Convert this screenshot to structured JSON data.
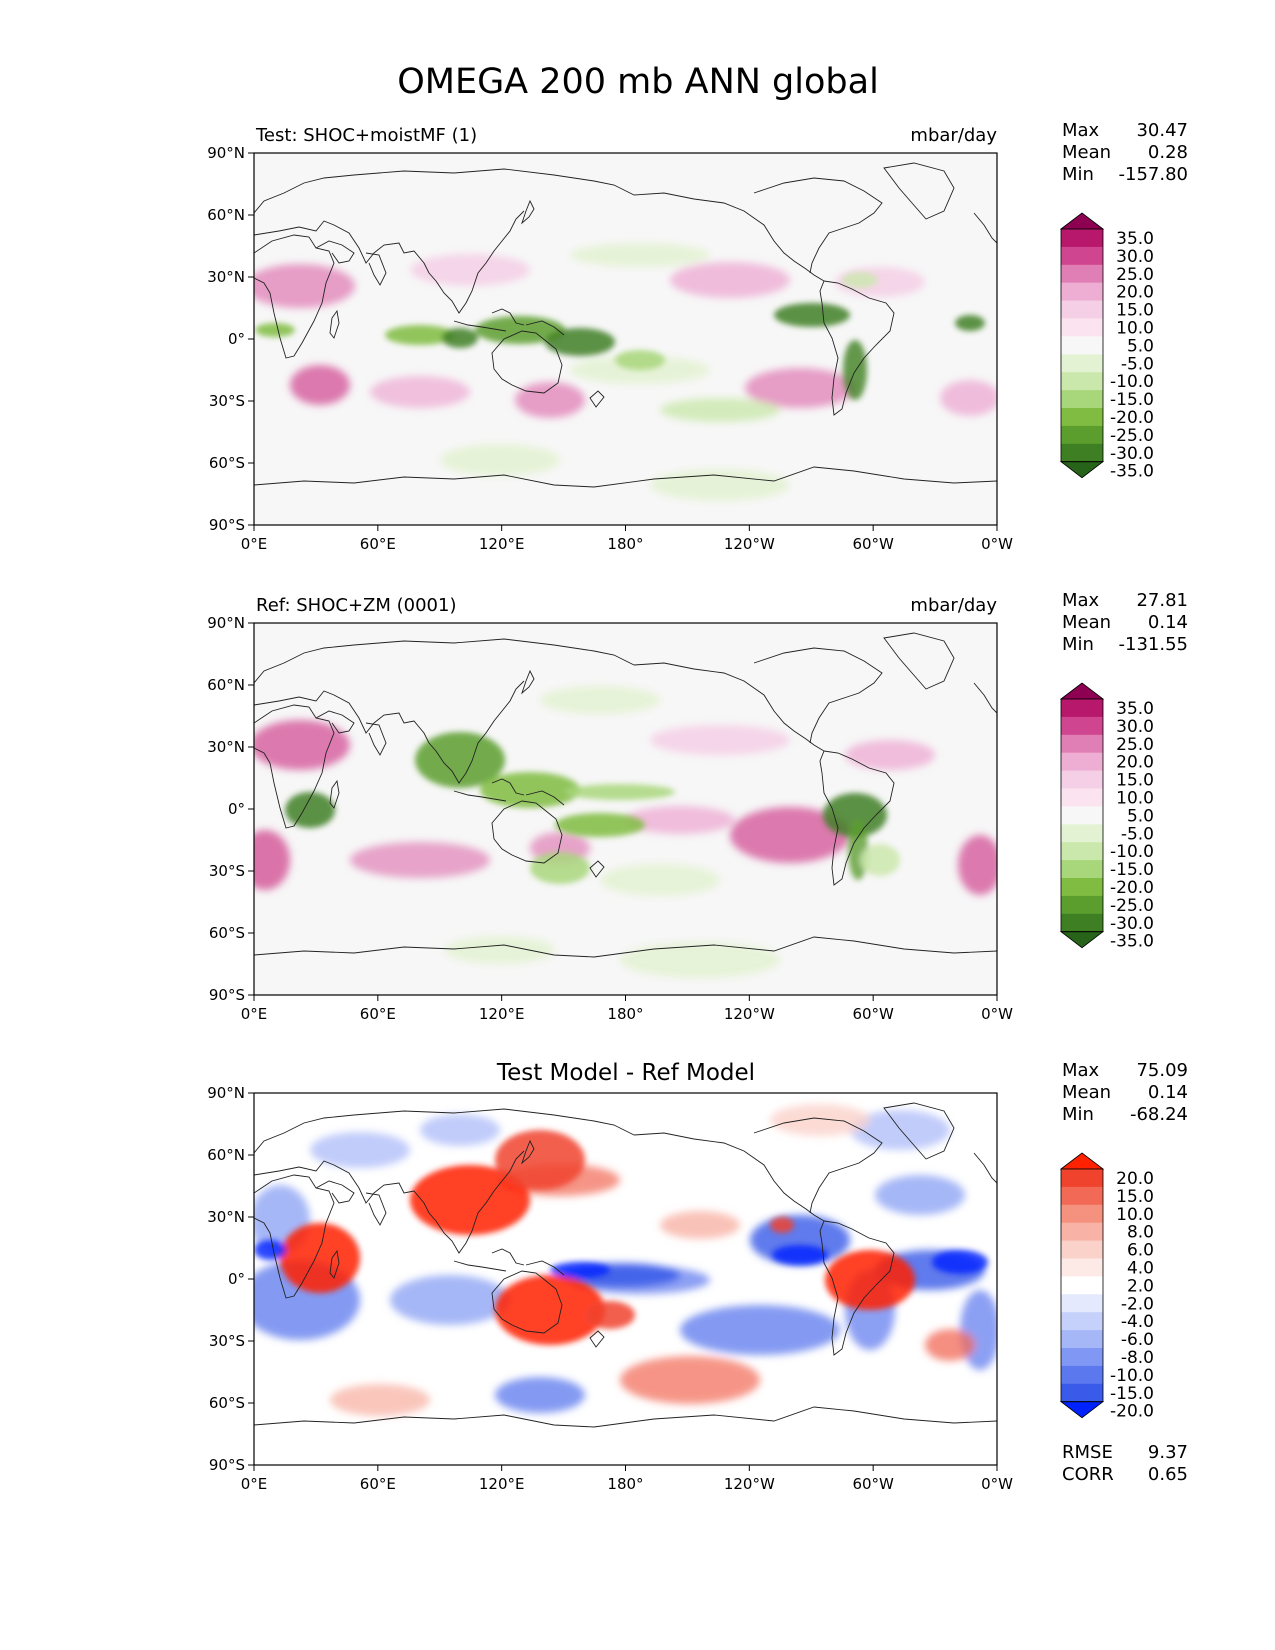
{
  "figure": {
    "title": "OMEGA 200 mb ANN global"
  },
  "chart_data": [
    {
      "type": "contour-map",
      "title": "Test: SHOC+moistMF (1)",
      "units": "mbar/day",
      "x_ticks": [
        "0°E",
        "60°E",
        "120°E",
        "180°",
        "120°W",
        "60°W",
        "0°W"
      ],
      "y_ticks": [
        "90°N",
        "60°N",
        "30°N",
        "0°",
        "30°S",
        "60°S",
        "90°S"
      ],
      "xlim": [
        0,
        360
      ],
      "ylim": [
        -90,
        90
      ],
      "stats": [
        {
          "label": "Max",
          "value": "30.47"
        },
        {
          "label": "Mean",
          "value": "0.28"
        },
        {
          "label": "Min",
          "value": "-157.80"
        }
      ],
      "colorbar": {
        "levels": [
          "35.0",
          "30.0",
          "25.0",
          "20.0",
          "15.0",
          "10.0",
          "5.0",
          "-5.0",
          "-10.0",
          "-15.0",
          "-20.0",
          "-25.0",
          "-30.0",
          "-35.0"
        ],
        "colors": [
          "#8e0152",
          "#b8186b",
          "#d0458f",
          "#e07fb5",
          "#eeaed4",
          "#f5cfe6",
          "#fbe4f0",
          "#f7f7f7",
          "#e4f2d4",
          "#cbe8ac",
          "#a8d67b",
          "#7fbc41",
          "#5c9e2e",
          "#3f7f23",
          "#276419"
        ]
      }
    },
    {
      "type": "contour-map",
      "title": "Ref: SHOC+ZM (0001)",
      "units": "mbar/day",
      "x_ticks": [
        "0°E",
        "60°E",
        "120°E",
        "180°",
        "120°W",
        "60°W",
        "0°W"
      ],
      "y_ticks": [
        "90°N",
        "60°N",
        "30°N",
        "0°",
        "30°S",
        "60°S",
        "90°S"
      ],
      "xlim": [
        0,
        360
      ],
      "ylim": [
        -90,
        90
      ],
      "stats": [
        {
          "label": "Max",
          "value": "27.81"
        },
        {
          "label": "Mean",
          "value": "0.14"
        },
        {
          "label": "Min",
          "value": "-131.55"
        }
      ],
      "colorbar": {
        "levels": [
          "35.0",
          "30.0",
          "25.0",
          "20.0",
          "15.0",
          "10.0",
          "5.0",
          "-5.0",
          "-10.0",
          "-15.0",
          "-20.0",
          "-25.0",
          "-30.0",
          "-35.0"
        ],
        "colors": [
          "#8e0152",
          "#b8186b",
          "#d0458f",
          "#e07fb5",
          "#eeaed4",
          "#f5cfe6",
          "#fbe4f0",
          "#f7f7f7",
          "#e4f2d4",
          "#cbe8ac",
          "#a8d67b",
          "#7fbc41",
          "#5c9e2e",
          "#3f7f23",
          "#276419"
        ]
      }
    },
    {
      "type": "contour-map",
      "title": "Test Model - Ref Model",
      "units": "",
      "x_ticks": [
        "0°E",
        "60°E",
        "120°E",
        "180°",
        "120°W",
        "60°W",
        "0°W"
      ],
      "y_ticks": [
        "90°N",
        "60°N",
        "30°N",
        "0°",
        "30°S",
        "60°S",
        "90°S"
      ],
      "xlim": [
        0,
        360
      ],
      "ylim": [
        -90,
        90
      ],
      "stats": [
        {
          "label": "Max",
          "value": "75.09"
        },
        {
          "label": "Mean",
          "value": "0.14"
        },
        {
          "label": "Min",
          "value": "-68.24"
        }
      ],
      "extra_stats": [
        {
          "label": "RMSE",
          "value": "9.37"
        },
        {
          "label": "CORR",
          "value": "0.65"
        }
      ],
      "colorbar": {
        "levels": [
          "20.0",
          "15.0",
          "10.0",
          "8.0",
          "6.0",
          "4.0",
          "2.0",
          "-2.0",
          "-4.0",
          "-6.0",
          "-8.0",
          "-10.0",
          "-15.0",
          "-20.0"
        ],
        "colors": [
          "#ff2200",
          "#f0432e",
          "#f26a55",
          "#f5917f",
          "#f8b3a6",
          "#fbd2ca",
          "#fde9e5",
          "#ffffff",
          "#e4e9fd",
          "#c6d1fb",
          "#a6b7f8",
          "#8098f3",
          "#5b78ee",
          "#3a5ae9",
          "#0022ff"
        ]
      }
    }
  ]
}
